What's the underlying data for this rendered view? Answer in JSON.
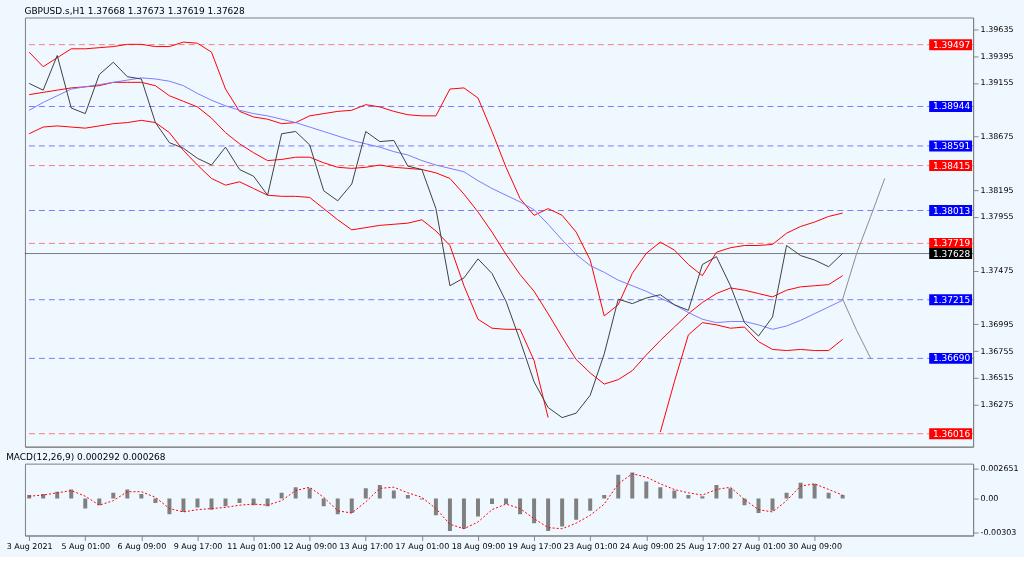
{
  "chart_data": [
    {
      "type": "line",
      "title": "GBPUSD.s,H1  1.37668 1.37673 1.37619 1.37628",
      "ylim": [
        1.359,
        1.3974
      ],
      "tick_labels": "y",
      "categories": [
        null,
        null,
        null,
        null,
        null,
        null,
        null,
        null,
        null,
        null,
        null,
        null,
        null,
        null,
        null,
        null,
        null,
        null,
        null,
        null,
        null,
        null,
        null,
        null,
        null,
        null,
        null,
        null,
        null,
        null,
        null,
        null,
        null,
        null,
        null,
        null,
        null,
        null,
        null,
        null,
        null,
        null,
        null,
        null,
        null,
        null,
        null,
        null,
        null,
        null,
        null,
        null,
        null,
        null,
        null,
        null,
        null,
        null,
        null,
        null,
        null,
        null,
        null,
        null,
        null,
        null,
        null,
        null
      ],
      "yticks": [
        1.36275,
        1.36515,
        1.36755,
        1.36995,
        1.37475,
        1.37955,
        1.38195,
        1.38675,
        1.39155,
        1.39395,
        1.39635
      ],
      "series": [
        {
          "color": "#ff0000",
          "values": [
            1.3943,
            1.393,
            1.3938,
            1.3946,
            1.3946,
            1.3947,
            1.3948,
            1.395,
            1.395,
            1.3948,
            1.3948,
            1.3952,
            1.3951,
            1.3943,
            1.391,
            1.389,
            1.3885,
            1.3883,
            1.3879,
            1.388,
            1.3886,
            1.3888,
            1.389,
            1.3891,
            1.3896,
            1.3894,
            1.389,
            1.3887,
            1.3886,
            1.3886,
            1.391,
            1.3911,
            1.3902,
            1.3872,
            1.384,
            1.3812,
            1.3797,
            1.3803,
            1.3797,
            1.3782,
            1.3757,
            1.3707,
            1.3717,
            1.3745,
            1.3763,
            1.3773,
            1.3766,
            1.3753,
            1.3743,
            1.3764,
            1.3768,
            1.377,
            1.377,
            1.3771,
            1.3781,
            1.3787,
            1.3791,
            1.3796,
            1.3799,
            null,
            null,
            null,
            null,
            null,
            null,
            null,
            null,
            null
          ]
        },
        {
          "color": "#ff0000",
          "values": [
            1.3905,
            1.3907,
            1.3909,
            1.3911,
            1.3912,
            1.3913,
            1.3916,
            1.3916,
            1.3916,
            1.3913,
            1.3904,
            1.3899,
            1.3894,
            1.3884,
            1.3871,
            1.3861,
            1.3853,
            1.3846,
            1.3847,
            1.3849,
            1.3849,
            1.3844,
            1.384,
            1.3839,
            1.384,
            1.3842,
            1.384,
            1.3839,
            1.3838,
            1.3835,
            1.383,
            1.3816,
            1.38,
            1.3782,
            1.3762,
            1.3744,
            1.3729,
            1.3709,
            1.3688,
            1.3668,
            1.3656,
            1.3646,
            1.365,
            1.3658,
            1.3672,
            1.3685,
            1.3697,
            1.3709,
            1.3719,
            1.3727,
            1.3732,
            1.373,
            1.3727,
            1.3724,
            1.373,
            1.3733,
            1.3734,
            1.3735,
            1.3743,
            null,
            null,
            null,
            null,
            null,
            null,
            null,
            null,
            null
          ]
        },
        {
          "color": "#ff0000",
          "values": [
            1.387,
            1.3876,
            1.3877,
            1.3876,
            1.3875,
            1.3877,
            1.3879,
            1.388,
            1.3882,
            1.388,
            1.3871,
            1.3855,
            1.3842,
            1.383,
            1.3824,
            1.3827,
            1.3821,
            1.3815,
            1.3814,
            1.3814,
            1.3813,
            1.3803,
            1.3793,
            1.3784,
            1.3786,
            1.3788,
            1.3789,
            1.379,
            1.3793,
            1.3783,
            1.377,
            1.3734,
            1.3704,
            1.3696,
            1.3695,
            1.3695,
            1.3667,
            1.3616,
            null,
            null,
            null,
            null,
            null,
            null,
            null,
            1.3603,
            1.3648,
            1.369,
            1.3701,
            1.3699,
            1.3696,
            1.3697,
            1.3684,
            1.3677,
            1.3676,
            1.3677,
            1.3676,
            1.3676,
            1.3686,
            null,
            null,
            null,
            null,
            null,
            null,
            null,
            null,
            null
          ]
        },
        {
          "color": "#7b7bff",
          "values": [
            1.3891,
            1.3898,
            1.3904,
            1.391,
            1.3912,
            1.3914,
            1.3916,
            1.3918,
            1.392,
            1.3919,
            1.3917,
            1.3913,
            1.3906,
            1.39,
            1.3895,
            1.3891,
            1.3888,
            1.3886,
            1.3883,
            1.388,
            1.3876,
            1.3872,
            1.3868,
            1.3864,
            1.3861,
            1.3858,
            1.3854,
            1.3851,
            1.3846,
            1.3842,
            1.3839,
            1.3836,
            1.3828,
            1.3821,
            1.3815,
            1.3809,
            1.3802,
            1.3789,
            1.3775,
            1.3762,
            1.3752,
            1.3746,
            1.3739,
            1.3734,
            1.3729,
            1.3723,
            1.3717,
            1.371,
            1.3704,
            1.3701,
            1.3702,
            1.3702,
            1.3699,
            1.3695,
            1.3698,
            1.3703,
            1.3709,
            1.3715,
            1.3721,
            null,
            null,
            null,
            null,
            null,
            null,
            null,
            null,
            null
          ]
        },
        {
          "color": "#404040",
          "values": [
            1.3915,
            1.3909,
            1.394,
            1.3893,
            1.3888,
            1.3923,
            1.3934,
            1.3921,
            1.3919,
            1.388,
            1.3862,
            1.3857,
            1.3848,
            1.3842,
            1.3858,
            1.3838,
            1.3832,
            1.3815,
            1.387,
            1.3872,
            1.386,
            1.3819,
            1.381,
            1.3825,
            1.3872,
            1.3863,
            1.3864,
            1.3841,
            1.3838,
            1.3803,
            1.3734,
            1.3741,
            1.3758,
            1.3745,
            1.372,
            1.3685,
            1.3648,
            1.3625,
            1.3616,
            1.362,
            1.3636,
            1.3673,
            1.3722,
            1.3718,
            1.3723,
            1.3726,
            1.3717,
            1.3712,
            1.3753,
            1.376,
            1.3734,
            1.3701,
            1.3689,
            1.3706,
            1.377,
            1.3761,
            1.3757,
            1.3751,
            1.3763,
            null,
            null,
            null,
            null,
            null,
            null,
            null,
            null,
            null
          ]
        },
        {
          "color": "#8c8c8c",
          "values": [
            null,
            null,
            null,
            null,
            null,
            null,
            null,
            null,
            null,
            null,
            null,
            null,
            null,
            null,
            null,
            null,
            null,
            null,
            null,
            null,
            null,
            null,
            null,
            null,
            null,
            null,
            null,
            null,
            null,
            null,
            null,
            null,
            null,
            null,
            null,
            null,
            null,
            null,
            null,
            null,
            null,
            null,
            null,
            null,
            null,
            null,
            null,
            null,
            null,
            null,
            null,
            null,
            null,
            null,
            null,
            null,
            null,
            null,
            1.3722,
            1.3763,
            1.3796,
            1.383,
            null,
            null,
            null,
            null,
            null,
            null
          ]
        },
        {
          "color": "#8c8c8c",
          "values": [
            null,
            null,
            null,
            null,
            null,
            null,
            null,
            null,
            null,
            null,
            null,
            null,
            null,
            null,
            null,
            null,
            null,
            null,
            null,
            null,
            null,
            null,
            null,
            null,
            null,
            null,
            null,
            null,
            null,
            null,
            null,
            null,
            null,
            null,
            null,
            null,
            null,
            null,
            null,
            null,
            null,
            null,
            null,
            null,
            null,
            null,
            null,
            null,
            null,
            null,
            null,
            null,
            null,
            null,
            null,
            null,
            null,
            null,
            1.3722,
            1.3694,
            1.3669,
            null,
            null,
            null,
            null,
            null,
            null,
            null
          ]
        }
      ],
      "ref_lines": [
        {
          "axis": "y",
          "value": 1.39497,
          "label": "1.39497",
          "color": "#ff0000",
          "line_style": "dashed"
        },
        {
          "axis": "y",
          "value": 1.38944,
          "label": "1.38944",
          "color": "#0000ff",
          "line_style": "dashed"
        },
        {
          "axis": "y",
          "value": 1.38591,
          "label": "1.38591",
          "color": "#0000ff",
          "line_style": "dashed"
        },
        {
          "axis": "y",
          "value": 1.38415,
          "label": "1.38415",
          "color": "#ff0000",
          "line_style": "dashed"
        },
        {
          "axis": "y",
          "value": 1.38013,
          "label": "1.38013",
          "color": "#0000ff",
          "line_style": "dashed"
        },
        {
          "axis": "y",
          "value": 1.37719,
          "label": "1.37719",
          "color": "#ff0000",
          "line_style": "dashed"
        },
        {
          "axis": "y",
          "value": 1.37628,
          "label": "1.37628",
          "color": "#000000",
          "line_style": "solid"
        },
        {
          "axis": "y",
          "value": 1.37215,
          "label": "1.37215",
          "color": "#0000ff",
          "line_style": "dashed"
        },
        {
          "axis": "y",
          "value": 1.3669,
          "label": "1.36690",
          "color": "#0000ff",
          "line_style": "dashed"
        },
        {
          "axis": "y",
          "value": 1.36016,
          "label": "1.36016",
          "color": "#ff0000",
          "line_style": "dashed"
        }
      ]
    },
    {
      "type": "bar",
      "title": "MACD(12,26,9) 0.000292 0.000268",
      "ylim": [
        -0.0033,
        0.0031
      ],
      "yticks": [
        -0.00303,
        {
          "value": 0,
          "label": "0.00"
        },
        0.002651
      ],
      "categories": [
        "3 Aug 2021",
        null,
        null,
        null,
        "5 Aug 01:00",
        null,
        null,
        null,
        "6 Aug 09:00",
        null,
        null,
        null,
        "9 Aug 17:00",
        null,
        null,
        null,
        "11 Aug 01:00",
        null,
        null,
        null,
        "12 Aug 09:00",
        null,
        null,
        null,
        "13 Aug 17:00",
        null,
        null,
        null,
        "17 Aug 01:00",
        null,
        null,
        null,
        "18 Aug 09:00",
        null,
        null,
        null,
        "19 Aug 17:00",
        null,
        null,
        null,
        "23 Aug 01:00",
        null,
        null,
        null,
        "24 Aug 09:00",
        null,
        null,
        null,
        "25 Aug 17:00",
        null,
        null,
        null,
        "27 Aug 01:00",
        null,
        null,
        null,
        "30 Aug 09:00",
        null,
        null,
        null,
        null,
        null,
        null,
        null,
        null,
        null,
        null,
        null
      ],
      "series": [
        {
          "color": "#808080",
          "values": [
            0.0003,
            0.0004,
            0.0006,
            0.0008,
            -0.0009,
            -0.0006,
            0.0005,
            0.0008,
            0.0004,
            -0.0004,
            -0.0014,
            -0.0012,
            -0.0008,
            -0.001,
            -0.0007,
            -0.0004,
            -0.0006,
            -0.0007,
            0.0005,
            0.001,
            0.0009,
            -0.0007,
            -0.0014,
            -0.0013,
            0.0009,
            0.0012,
            0.0007,
            0.0003,
            -0.0001,
            -0.0015,
            -0.0029,
            -0.0027,
            -0.0016,
            -0.0005,
            -0.0005,
            -0.0014,
            -0.0022,
            -0.0029,
            -0.0025,
            -0.0019,
            -0.0011,
            0.0003,
            0.0021,
            0.0023,
            0.0015,
            0.001,
            0.0007,
            0.0003,
            0.0002,
            0.0012,
            0.0009,
            -0.0006,
            -0.0013,
            -0.0011,
            0.0005,
            0.0014,
            0.0013,
            0.0005,
            0.0003,
            null,
            null,
            null,
            null,
            null,
            null,
            null,
            null,
            null
          ]
        },
        {
          "type": "line",
          "color": "#ff0000",
          "line_style": "dotted",
          "values": [
            0.0002,
            0.0003,
            0.0005,
            0.0007,
            0.0002,
            -0.0006,
            -0.0002,
            0.0006,
            0.0006,
            0.0001,
            -0.0009,
            -0.0012,
            -0.001,
            -0.0009,
            -0.0008,
            -0.0006,
            -0.0005,
            -0.0006,
            -0.0002,
            0.0007,
            0.001,
            0.0001,
            -0.0011,
            -0.0013,
            -0.0003,
            0.0009,
            0.001,
            0.0005,
            0.0001,
            -0.0009,
            -0.0023,
            -0.0027,
            -0.0021,
            -0.001,
            -0.0005,
            -0.0009,
            -0.0018,
            -0.0026,
            -0.0027,
            -0.0022,
            -0.0015,
            -0.0005,
            0.0013,
            0.0022,
            0.0019,
            0.0013,
            0.0008,
            0.0005,
            0.0003,
            0.0008,
            0.001,
            -0.0001,
            -0.001,
            -0.0012,
            -0.0002,
            0.0011,
            0.0013,
            0.0008,
            0.0003,
            null,
            null,
            null,
            null,
            null,
            null,
            null,
            null,
            null
          ]
        }
      ]
    }
  ]
}
